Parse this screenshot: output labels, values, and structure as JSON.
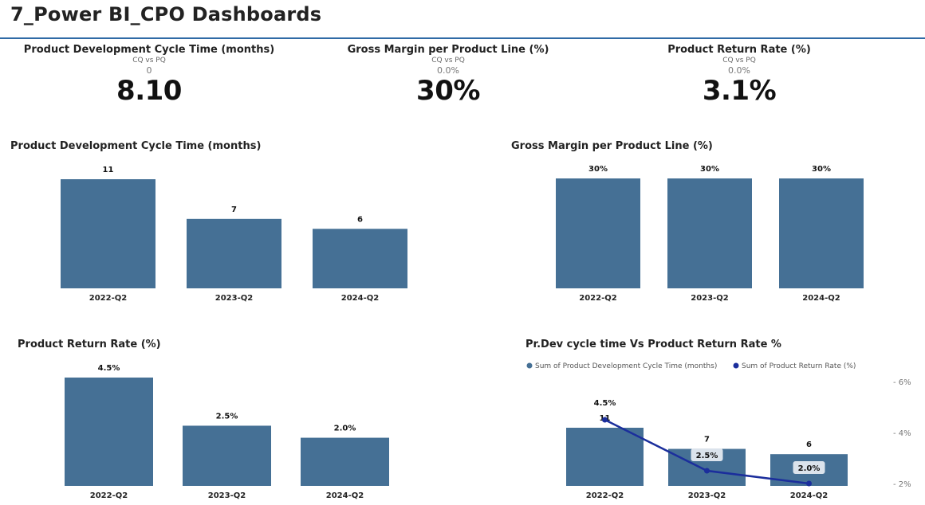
{
  "page": {
    "title": "7_Power BI_CPO Dashboards"
  },
  "colors": {
    "bar": "#457095",
    "line": "#1b2e9c",
    "title_rule": "#2f6aa6"
  },
  "kpis": [
    {
      "title": "Product Development Cycle Time (months)",
      "subtitle": "CQ vs PQ",
      "delta": "0",
      "value": "8.10"
    },
    {
      "title": "Gross Margin per Product Line (%)",
      "subtitle": "CQ vs PQ",
      "delta": "0.0%",
      "value": "30%"
    },
    {
      "title": "Product Return Rate (%)",
      "subtitle": "CQ vs PQ",
      "delta": "0.0%",
      "value": "3.1%"
    }
  ],
  "chart_data": [
    {
      "type": "bar",
      "title": "Product Development Cycle Time (months)",
      "categories": [
        "2022-Q2",
        "2023-Q2",
        "2024-Q2"
      ],
      "values": [
        11,
        7,
        6
      ],
      "labels": [
        "11",
        "7",
        "6"
      ]
    },
    {
      "type": "bar",
      "title": "Gross Margin per Product Line (%)",
      "categories": [
        "2022-Q2",
        "2023-Q2",
        "2024-Q2"
      ],
      "values": [
        30,
        30,
        30
      ],
      "labels": [
        "30%",
        "30%",
        "30%"
      ]
    },
    {
      "type": "bar",
      "title": "Product Return Rate (%)",
      "categories": [
        "2022-Q2",
        "2023-Q2",
        "2024-Q2"
      ],
      "values": [
        4.5,
        2.5,
        2.0
      ],
      "labels": [
        "4.5%",
        "2.5%",
        "2.0%"
      ]
    },
    {
      "type": "bar+line",
      "title": "Pr.Dev cycle time Vs Product Return Rate %",
      "categories": [
        "2022-Q2",
        "2023-Q2",
        "2024-Q2"
      ],
      "legend_position": "top",
      "series": [
        {
          "name": "Sum of Product Development Cycle Time (months)",
          "type": "bar",
          "values": [
            11,
            7,
            6
          ],
          "labels": [
            "11",
            "7",
            "6"
          ]
        },
        {
          "name": "Sum of Product Return Rate (%)",
          "type": "line",
          "values": [
            4.5,
            2.5,
            2.0
          ],
          "labels": [
            "4.5%",
            "2.5%",
            "2.0%"
          ]
        }
      ],
      "y2_ticks": [
        "6%",
        "4%",
        "2%"
      ],
      "y2_range": [
        2,
        6
      ]
    }
  ]
}
